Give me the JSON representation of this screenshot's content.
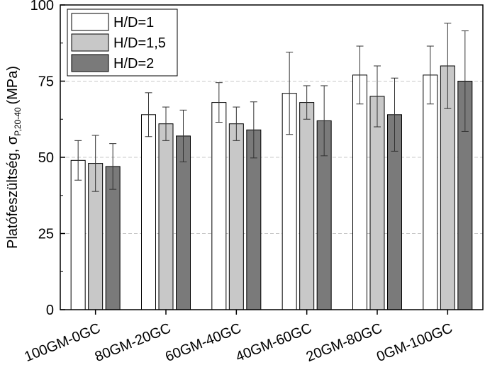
{
  "chart_data": {
    "type": "bar",
    "title": "",
    "xlabel": "",
    "ylabel": "Platófeszültség, σ",
    "ylabel_subscript": "P,20-40",
    "ylabel_unit": "(MPa)",
    "categories": [
      "100GM-0GC",
      "80GM-20GC",
      "60GM-40GC",
      "40GM-60GC",
      "20GM-80GC",
      "0GM-100GC"
    ],
    "series": [
      {
        "name": "H/D=1",
        "color": "#ffffff",
        "values": [
          49,
          64,
          68,
          71,
          77,
          77
        ],
        "errors": [
          6.5,
          7.2,
          6.5,
          13.5,
          9.5,
          9.5
        ]
      },
      {
        "name": "H/D=1,5",
        "color": "#c8c8c8",
        "values": [
          48,
          61,
          61,
          68,
          70,
          80
        ],
        "errors": [
          9.2,
          5.5,
          5.5,
          5.5,
          10,
          14
        ]
      },
      {
        "name": "H/D=2",
        "color": "#7a7a7a",
        "values": [
          47,
          57,
          59,
          62,
          64,
          75
        ],
        "errors": [
          7.5,
          8.5,
          9.2,
          11.5,
          12,
          16.5
        ]
      }
    ],
    "ylim": [
      0,
      100
    ],
    "yticks": [
      "0",
      "25",
      "50",
      "75",
      "100"
    ],
    "grid": "horizontal dashed",
    "legend_position": "top-left",
    "bar_stroke": "#000000",
    "grid_color": "#c8c8c8"
  }
}
